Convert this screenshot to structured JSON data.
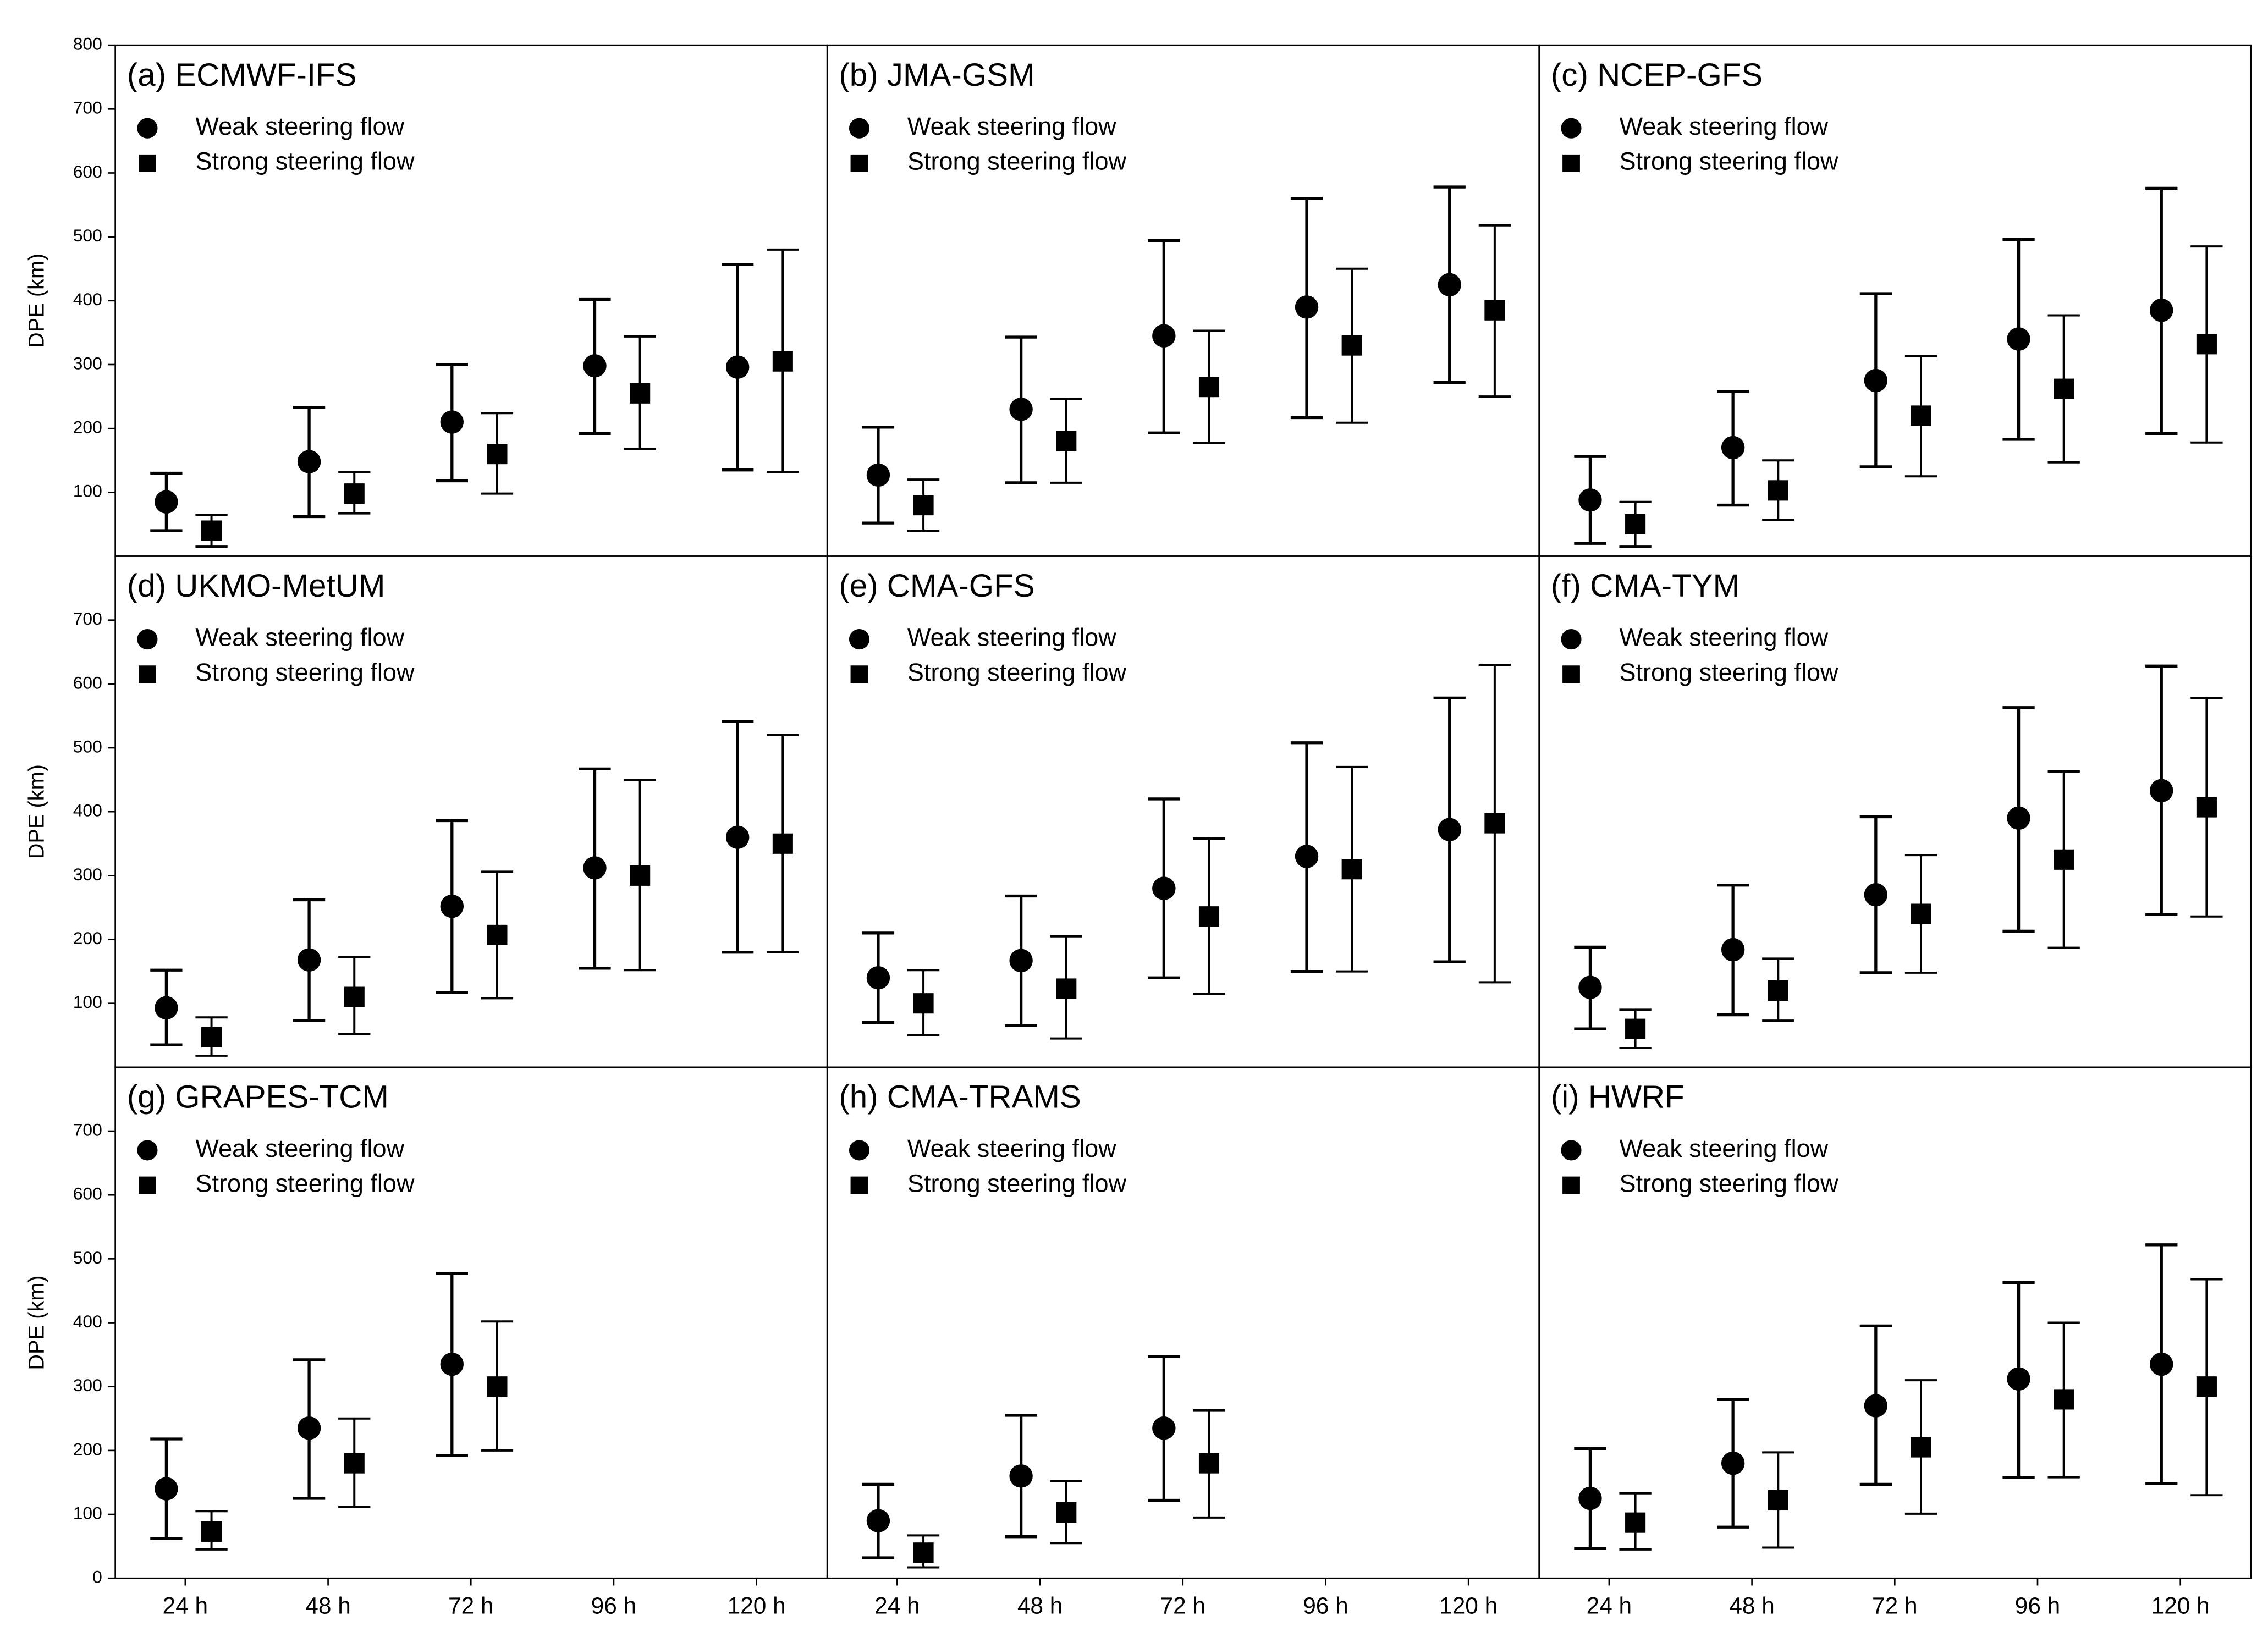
{
  "chart_data": [
    {
      "type": "errorbar",
      "title": "(a) ECMWF-IFS",
      "ylabel": "DPE (km)",
      "ylim": [
        0,
        800
      ],
      "yticks": [
        100,
        200,
        300,
        400,
        500,
        600,
        700,
        800
      ],
      "series": [
        {
          "name": "Weak steering flow",
          "marker": "circle",
          "color": "#000000",
          "values": [
            85,
            148,
            210,
            298,
            296
          ],
          "lower": [
            40,
            62,
            118,
            192,
            135
          ],
          "upper": [
            130,
            233,
            300,
            402,
            457
          ]
        },
        {
          "name": "Strong steering flow",
          "marker": "square",
          "color": "#000000",
          "values": [
            40,
            98,
            160,
            255,
            305
          ],
          "lower": [
            15,
            67,
            98,
            168,
            132
          ],
          "upper": [
            65,
            132,
            224,
            344,
            480
          ]
        }
      ]
    },
    {
      "type": "errorbar",
      "title": "(b) JMA-GSM",
      "ylim": [
        0,
        800
      ],
      "series": [
        {
          "name": "Weak steering flow",
          "marker": "circle",
          "color": "#000000",
          "values": [
            127,
            230,
            345,
            390,
            425
          ],
          "lower": [
            52,
            115,
            193,
            217,
            272
          ],
          "upper": [
            202,
            343,
            494,
            560,
            578
          ]
        },
        {
          "name": "Strong steering flow",
          "marker": "square",
          "color": "#000000",
          "values": [
            80,
            180,
            265,
            330,
            385
          ],
          "lower": [
            40,
            115,
            177,
            209,
            250
          ],
          "upper": [
            120,
            246,
            353,
            450,
            518
          ]
        }
      ]
    },
    {
      "type": "errorbar",
      "title": "(c) NCEP-GFS",
      "ylim": [
        0,
        800
      ],
      "series": [
        {
          "name": "Weak steering flow",
          "marker": "circle",
          "color": "#000000",
          "values": [
            88,
            170,
            275,
            340,
            385
          ],
          "lower": [
            20,
            80,
            140,
            183,
            192
          ],
          "upper": [
            156,
            258,
            411,
            496,
            576
          ]
        },
        {
          "name": "Strong steering flow",
          "marker": "square",
          "color": "#000000",
          "values": [
            50,
            103,
            220,
            262,
            332
          ],
          "lower": [
            15,
            57,
            125,
            147,
            178
          ],
          "upper": [
            85,
            150,
            313,
            377,
            485
          ]
        }
      ]
    },
    {
      "type": "errorbar",
      "title": "(d) UKMO-MetUM",
      "ylabel": "DPE (km)",
      "ylim": [
        0,
        800
      ],
      "yticks": [
        100,
        200,
        300,
        400,
        500,
        600,
        700
      ],
      "series": [
        {
          "name": "Weak steering flow",
          "marker": "circle",
          "color": "#000000",
          "values": [
            93,
            168,
            252,
            312,
            360
          ],
          "lower": [
            35,
            73,
            117,
            155,
            180
          ],
          "upper": [
            152,
            262,
            386,
            467,
            541
          ]
        },
        {
          "name": "Strong steering flow",
          "marker": "square",
          "color": "#000000",
          "values": [
            47,
            110,
            207,
            300,
            350
          ],
          "lower": [
            18,
            52,
            108,
            152,
            180
          ],
          "upper": [
            78,
            172,
            306,
            450,
            520
          ]
        }
      ]
    },
    {
      "type": "errorbar",
      "title": "(e) CMA-GFS",
      "ylim": [
        0,
        800
      ],
      "series": [
        {
          "name": "Weak steering flow",
          "marker": "circle",
          "color": "#000000",
          "values": [
            140,
            167,
            280,
            330,
            372
          ],
          "lower": [
            70,
            65,
            140,
            150,
            165
          ],
          "upper": [
            210,
            268,
            420,
            508,
            578
          ]
        },
        {
          "name": "Strong steering flow",
          "marker": "square",
          "color": "#000000",
          "values": [
            100,
            123,
            236,
            310,
            382
          ],
          "lower": [
            50,
            45,
            115,
            150,
            133
          ],
          "upper": [
            152,
            205,
            358,
            470,
            630
          ]
        }
      ]
    },
    {
      "type": "errorbar",
      "title": "(f) CMA-TYM",
      "ylim": [
        0,
        800
      ],
      "series": [
        {
          "name": "Weak steering flow",
          "marker": "circle",
          "color": "#000000",
          "values": [
            125,
            184,
            270,
            390,
            433
          ],
          "lower": [
            60,
            82,
            148,
            213,
            239
          ],
          "upper": [
            188,
            285,
            392,
            563,
            628
          ]
        },
        {
          "name": "Strong steering flow",
          "marker": "square",
          "color": "#000000",
          "values": [
            60,
            120,
            240,
            325,
            407
          ],
          "lower": [
            30,
            73,
            148,
            187,
            236
          ],
          "upper": [
            90,
            170,
            332,
            463,
            578
          ]
        }
      ]
    },
    {
      "type": "errorbar",
      "title": "(g) GRAPES-TCM",
      "ylabel": "DPE (km)",
      "ylim": [
        0,
        800
      ],
      "yticks": [
        0,
        100,
        200,
        300,
        400,
        500,
        600,
        700
      ],
      "categories": [
        "24 h",
        "48 h",
        "72 h",
        "96 h",
        "120 h"
      ],
      "series": [
        {
          "name": "Weak steering flow",
          "marker": "circle",
          "color": "#000000",
          "values": [
            140,
            235,
            335,
            null,
            null
          ],
          "lower": [
            62,
            125,
            192,
            null,
            null
          ],
          "upper": [
            218,
            342,
            477,
            null,
            null
          ]
        },
        {
          "name": "Strong steering flow",
          "marker": "square",
          "color": "#000000",
          "values": [
            73,
            180,
            300,
            null,
            null
          ],
          "lower": [
            45,
            112,
            200,
            null,
            null
          ],
          "upper": [
            105,
            250,
            402,
            null,
            null
          ]
        }
      ]
    },
    {
      "type": "errorbar",
      "title": "(h) CMA-TRAMS",
      "ylim": [
        0,
        800
      ],
      "categories": [
        "24 h",
        "48 h",
        "72 h",
        "96 h",
        "120 h"
      ],
      "series": [
        {
          "name": "Weak steering flow",
          "marker": "circle",
          "color": "#000000",
          "values": [
            90,
            160,
            235,
            null,
            null
          ],
          "lower": [
            32,
            65,
            122,
            null,
            null
          ],
          "upper": [
            147,
            255,
            347,
            null,
            null
          ]
        },
        {
          "name": "Strong steering flow",
          "marker": "square",
          "color": "#000000",
          "values": [
            40,
            103,
            180,
            null,
            null
          ],
          "lower": [
            17,
            55,
            95,
            null,
            null
          ],
          "upper": [
            67,
            152,
            263,
            null,
            null
          ]
        }
      ]
    },
    {
      "type": "errorbar",
      "title": "(i) HWRF",
      "ylim": [
        0,
        800
      ],
      "categories": [
        "24 h",
        "48 h",
        "72 h",
        "96 h",
        "120 h"
      ],
      "series": [
        {
          "name": "Weak steering flow",
          "marker": "circle",
          "color": "#000000",
          "values": [
            125,
            180,
            270,
            312,
            335
          ],
          "lower": [
            47,
            80,
            147,
            158,
            148
          ],
          "upper": [
            203,
            280,
            395,
            463,
            522
          ]
        },
        {
          "name": "Strong steering flow",
          "marker": "square",
          "color": "#000000",
          "values": [
            87,
            122,
            205,
            280,
            300
          ],
          "lower": [
            45,
            48,
            101,
            158,
            130
          ],
          "upper": [
            133,
            197,
            310,
            400,
            468
          ]
        }
      ]
    }
  ]
}
